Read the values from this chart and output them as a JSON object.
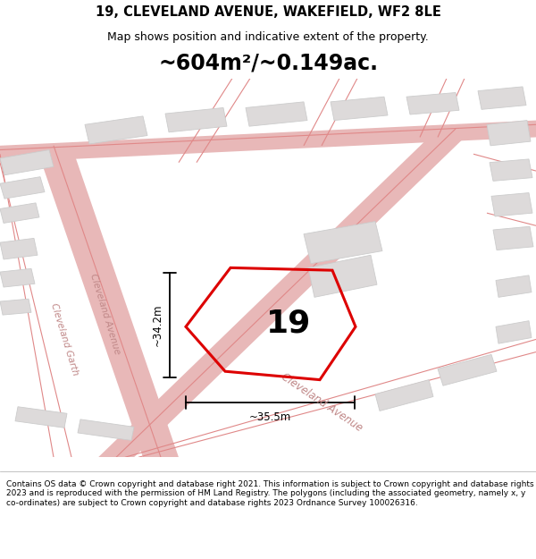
{
  "title_line1": "19, CLEVELAND AVENUE, WAKEFIELD, WF2 8LE",
  "title_line2": "Map shows position and indicative extent of the property.",
  "area_text": "~604m²/~0.149ac.",
  "property_number": "19",
  "dim_height": "~34.2m",
  "dim_width": "~35.5m",
  "footer_text": "Contains OS data © Crown copyright and database right 2021. This information is subject to Crown copyright and database rights 2023 and is reproduced with the permission of HM Land Registry. The polygons (including the associated geometry, namely x, y co-ordinates) are subject to Crown copyright and database rights 2023 Ordnance Survey 100026316.",
  "bg_color": "#ffffff",
  "map_bg": "#f5f2f2",
  "road_color": "#e8b8b8",
  "road_line_color": "#e08888",
  "building_color": "#dddada",
  "building_edge": "#cccccc",
  "property_color": "#dd0000",
  "street_label_color": "#c08888",
  "title_color": "#000000",
  "footer_color": "#000000",
  "title_fontsize": 10.5,
  "subtitle_fontsize": 9,
  "area_fontsize": 17,
  "number_fontsize": 28,
  "footer_fontsize": 6.5
}
